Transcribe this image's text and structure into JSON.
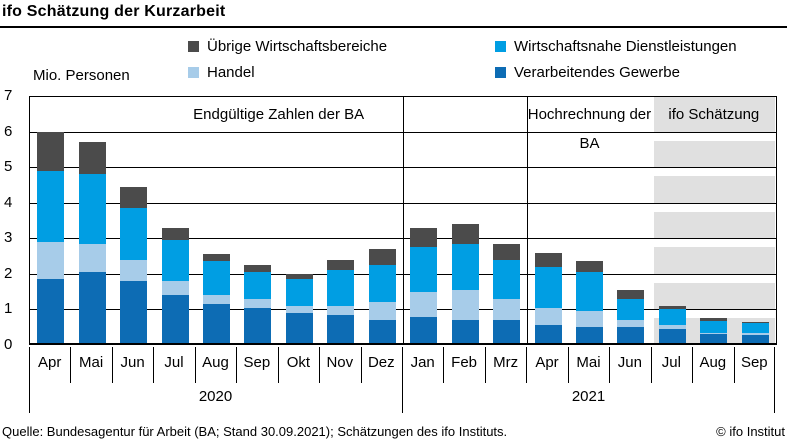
{
  "title": "ifo Schätzung der Kurzarbeit",
  "axis_unit_label": "Mio. Personen",
  "legend": {
    "col1": [
      {
        "label": "Übrige Wirtschaftsbereiche",
        "color": "#4b4b4b"
      },
      {
        "label": "Handel",
        "color": "#a7cce9"
      }
    ],
    "col2": [
      {
        "label": "Wirtschaftsnahe Dienstleistungen",
        "color": "#009ee3"
      },
      {
        "label": "Verarbeitendes Gewerbe",
        "color": "#0d6cb4"
      }
    ]
  },
  "footer": {
    "source": "Quelle: Bundesagentur für Arbeit (BA; Stand 30.09.2021); Schätzungen des ifo Instituts.",
    "copyright": "© ifo Institut"
  },
  "chart_data": {
    "type": "bar",
    "stacked": true,
    "title": "ifo Schätzung der Kurzarbeit",
    "ylabel": "Mio. Personen",
    "ylim": [
      0,
      7
    ],
    "yticks": [
      0,
      1,
      2,
      3,
      4,
      5,
      6,
      7
    ],
    "grid": true,
    "categories": [
      "Apr",
      "Mai",
      "Jun",
      "Jul",
      "Aug",
      "Sep",
      "Okt",
      "Nov",
      "Dez",
      "Jan",
      "Feb",
      "Mrz",
      "Apr",
      "Mai",
      "Jun",
      "Jul",
      "Aug",
      "Sep"
    ],
    "year_groups": [
      {
        "label": "2020",
        "months": 9
      },
      {
        "label": "2021",
        "months": 9
      }
    ],
    "series": [
      {
        "name": "Verarbeitendes Gewerbe",
        "color": "#0d6cb4",
        "values": [
          1.85,
          2.05,
          1.8,
          1.4,
          1.15,
          1.05,
          0.9,
          0.85,
          0.7,
          0.8,
          0.7,
          0.7,
          0.55,
          0.5,
          0.5,
          0.45,
          0.3,
          0.28
        ]
      },
      {
        "name": "Handel",
        "color": "#a7cce9",
        "values": [
          1.05,
          0.8,
          0.6,
          0.4,
          0.25,
          0.25,
          0.2,
          0.25,
          0.5,
          0.7,
          0.85,
          0.6,
          0.5,
          0.45,
          0.2,
          0.1,
          0.05,
          0.05
        ]
      },
      {
        "name": "Wirtschaftsnahe Dienstleistungen",
        "color": "#009ee3",
        "values": [
          2.0,
          1.95,
          1.45,
          1.15,
          0.95,
          0.75,
          0.75,
          1.0,
          1.05,
          1.25,
          1.3,
          1.1,
          1.15,
          1.1,
          0.6,
          0.45,
          0.32,
          0.28
        ]
      },
      {
        "name": "Übrige Wirtschaftsbereiche",
        "color": "#4b4b4b",
        "values": [
          1.1,
          0.9,
          0.6,
          0.35,
          0.2,
          0.2,
          0.15,
          0.3,
          0.45,
          0.55,
          0.55,
          0.45,
          0.4,
          0.3,
          0.25,
          0.1,
          0.08,
          0.04
        ]
      }
    ],
    "sections": [
      {
        "id": "endgueltige-zahlen-ba",
        "label": "Endgültige Zahlen der BA",
        "from": 0,
        "to": 11,
        "background": "none"
      },
      {
        "id": "hochrechnung-ba",
        "label": "Hochrechnung der BA",
        "from": 12,
        "to": 14,
        "background": "none"
      },
      {
        "id": "ifo-schaetzung",
        "label": "ifo Schätzung",
        "from": 15,
        "to": 17,
        "background": "#e0e0e0"
      }
    ],
    "divider_cells": [
      9,
      12
    ]
  }
}
